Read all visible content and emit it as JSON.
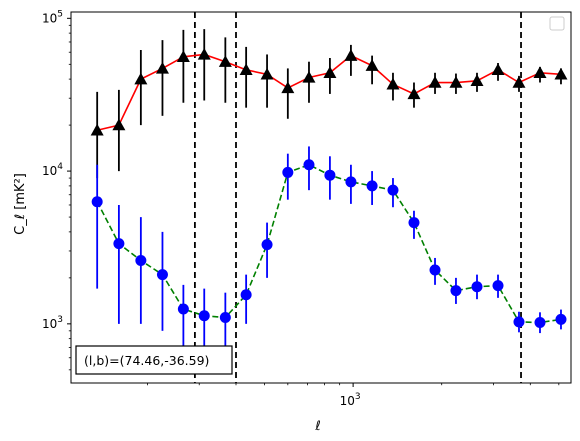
{
  "chart_data": {
    "type": "line",
    "xlabel": "ℓ",
    "ylabel": "C_ℓ  [mK²]",
    "xscale": "log",
    "yscale": "log",
    "xlim": [
      110,
      5500
    ],
    "ylim": [
      410,
      110000
    ],
    "x_major_ticks": [
      {
        "value": 1000,
        "label": "10",
        "exp": "3"
      }
    ],
    "y_major_ticks": [
      {
        "value": 1000,
        "label": "10",
        "exp": "3"
      },
      {
        "value": 10000,
        "label": "10",
        "exp": "4"
      },
      {
        "value": 100000,
        "label": "10",
        "exp": "5"
      }
    ],
    "legend": {
      "location": "top-right",
      "entries": []
    },
    "annotation": "(l,b)=(74.46,-36.59)",
    "vertical_lines": [
      290,
      400,
      3720
    ],
    "series": [
      {
        "color": "#ff0000",
        "marker": "triangle",
        "marker_color": "#000000",
        "linestyle": "solid",
        "x": [
          135,
          160,
          190,
          225,
          265,
          312,
          368,
          433,
          510,
          600,
          708,
          834,
          983,
          1160,
          1366,
          1610,
          1898,
          2236,
          2636,
          3107,
          3661,
          4315,
          5085
        ],
        "y": [
          18500,
          20000,
          40000,
          47000,
          56000,
          58000,
          52000,
          46000,
          43000,
          35000,
          41000,
          44000,
          57000,
          49000,
          37000,
          32000,
          38000,
          38000,
          39000,
          46000,
          38000,
          44000,
          43000
        ],
        "yerr_low": [
          9500,
          10000,
          20000,
          24000,
          28000,
          29000,
          24000,
          20000,
          17000,
          13000,
          13000,
          12000,
          15000,
          12000,
          8000,
          6000,
          6000,
          6000,
          6000,
          7000,
          5000,
          6000,
          6000
        ],
        "yerr_high": [
          14500,
          14000,
          22000,
          25000,
          28000,
          27000,
          23000,
          19000,
          15000,
          12000,
          11000,
          11000,
          10000,
          8000,
          7000,
          6000,
          6000,
          5500,
          5000,
          5000,
          4000,
          4000,
          4000
        ],
        "x_extra": [
          4315,
          5085
        ],
        "y_extra_note": "last two points shown separately"
      },
      {
        "color": "#008000",
        "marker": "circle",
        "marker_color": "#0000ff",
        "linestyle": "dashed",
        "x": [
          135,
          160,
          190,
          225,
          265,
          312,
          368,
          433,
          510,
          600,
          708,
          834,
          983,
          1160,
          1366,
          1610,
          1898,
          2236,
          2636,
          3107,
          3661,
          4315,
          5085
        ],
        "y": [
          6300,
          3350,
          2600,
          2100,
          1250,
          1130,
          1100,
          1550,
          3300,
          9800,
          11000,
          9400,
          8500,
          8000,
          7500,
          4600,
          2250,
          1650,
          1750,
          1780,
          1030,
          1020,
          1070
        ],
        "yerr_low": [
          4600,
          2350,
          1600,
          1200,
          650,
          530,
          450,
          550,
          1300,
          3300,
          3500,
          2900,
          2400,
          2000,
          1700,
          1000,
          450,
          300,
          300,
          300,
          150,
          150,
          150
        ],
        "yerr_high": [
          4700,
          2650,
          2400,
          1900,
          550,
          570,
          500,
          550,
          1300,
          3200,
          3500,
          3100,
          2500,
          2000,
          1500,
          900,
          450,
          350,
          350,
          320,
          170,
          170,
          170
        ]
      }
    ]
  }
}
